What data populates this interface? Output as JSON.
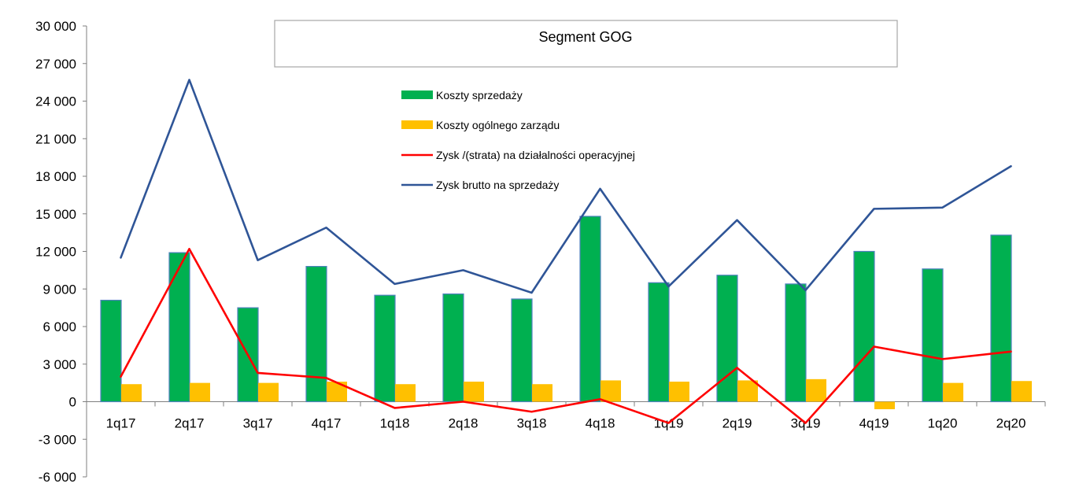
{
  "chart_data": {
    "type": "bar",
    "title": "Segment GOG",
    "categories": [
      "1q17",
      "2q17",
      "3q17",
      "4q17",
      "1q18",
      "2q18",
      "3q18",
      "4q18",
      "1q19",
      "2q19",
      "3q19",
      "4q19",
      "1q20",
      "2q20"
    ],
    "ylim": [
      -6000,
      30000
    ],
    "yticks": [
      -6000,
      -3000,
      0,
      3000,
      6000,
      9000,
      12000,
      15000,
      18000,
      21000,
      24000,
      27000,
      30000
    ],
    "ytick_labels": [
      "-6 000",
      "-3 000",
      "0",
      "3 000",
      "6 000",
      "9 000",
      "12 000",
      "15 000",
      "18 000",
      "21 000",
      "24 000",
      "27 000",
      "30 000"
    ],
    "grid": false,
    "legend_position": "top-center",
    "series": [
      {
        "name": "Koszty sprzedaży",
        "kind": "bar",
        "color": "#00b050",
        "values": [
          8100,
          11900,
          7500,
          10800,
          8500,
          8600,
          8200,
          14800,
          9500,
          10100,
          9400,
          12000,
          10600,
          13300
        ]
      },
      {
        "name": "Koszty ogólnego zarządu",
        "kind": "bar",
        "color": "#ffc000",
        "values": [
          1400,
          1500,
          1500,
          1600,
          1400,
          1600,
          1400,
          1700,
          1600,
          1700,
          1800,
          -600,
          1500,
          1650
        ]
      },
      {
        "name": "Zysk /(strata) na działalności operacyjnej",
        "kind": "line",
        "color": "#ff0000",
        "values": [
          2000,
          12200,
          2300,
          1900,
          -500,
          0,
          -800,
          200,
          -1700,
          2700,
          -1700,
          4400,
          3400,
          4000
        ]
      },
      {
        "name": "Zysk brutto na sprzedaży",
        "kind": "line",
        "color": "#2f5597",
        "values": [
          11500,
          25700,
          11300,
          13900,
          9400,
          10500,
          8700,
          17000,
          9200,
          14500,
          8900,
          15400,
          15500,
          18800
        ]
      }
    ]
  }
}
